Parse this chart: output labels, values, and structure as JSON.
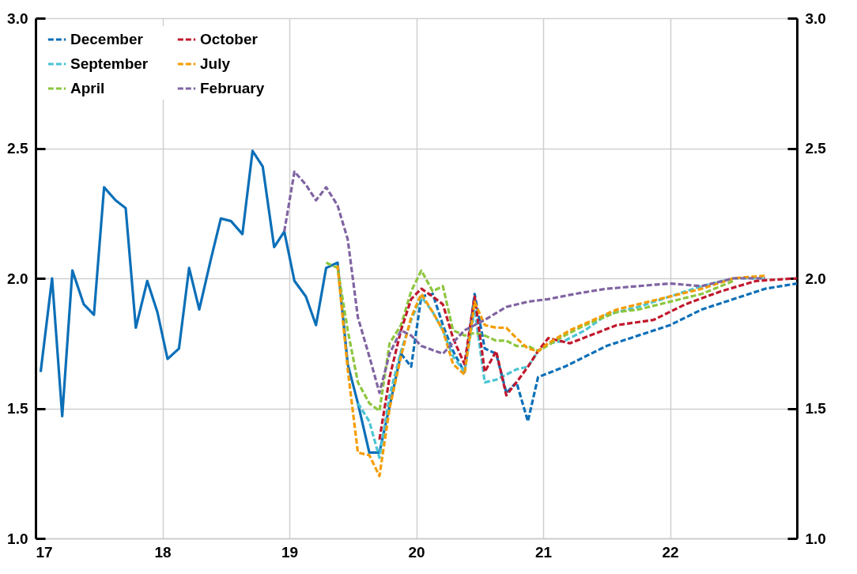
{
  "chart_data": {
    "type": "line",
    "xlim": [
      17,
      23
    ],
    "xticks": [
      17,
      18,
      19,
      20,
      21,
      22
    ],
    "ylim": [
      1.0,
      3.0
    ],
    "yticks": [
      {
        "value": 1.0,
        "label": "1.0"
      },
      {
        "value": 1.5,
        "label": "1.5"
      },
      {
        "value": 2.0,
        "label": "2.0"
      },
      {
        "value": 2.5,
        "label": "2.5"
      },
      {
        "value": 3.0,
        "label": "3.0"
      }
    ],
    "y2lim": [
      1.0,
      3.0
    ],
    "y2ticks": [
      {
        "value": 1.0,
        "label": "1.0"
      },
      {
        "value": 1.5,
        "label": "1.5"
      },
      {
        "value": 2.0,
        "label": "2.0"
      },
      {
        "value": 2.5,
        "label": "2.5"
      },
      {
        "value": 3.0,
        "label": "3.0"
      }
    ],
    "grid": true,
    "legend": "top left",
    "marker": "none",
    "series": [
      {
        "color": "#0b6fb8",
        "line_style": "solid",
        "x": [
          17.04,
          17.13,
          17.21,
          17.29,
          17.38,
          17.46,
          17.54,
          17.63,
          17.71,
          17.79,
          17.88,
          17.96,
          18.04,
          18.13,
          18.21,
          18.29,
          18.38,
          18.46,
          18.54,
          18.63,
          18.71,
          18.79,
          18.88,
          18.96,
          19.04,
          19.13,
          19.21,
          19.29,
          19.38,
          19.46,
          19.54,
          19.63,
          19.71,
          19.88
        ],
        "values": [
          1.64,
          2.0,
          1.47,
          2.03,
          1.9,
          1.86,
          2.35,
          2.3,
          2.27,
          1.81,
          1.99,
          1.87,
          1.69,
          1.73,
          2.04,
          1.88,
          2.07,
          2.23,
          2.22,
          2.17,
          2.49,
          2.43,
          2.12,
          2.18,
          1.99,
          1.93,
          1.82,
          2.04,
          2.06,
          1.67,
          1.52,
          1.33,
          1.33,
          1.71
        ]
      },
      {
        "name": "December",
        "color": "#0b6fb8",
        "line_style": "dashed",
        "x": [
          19.88,
          19.96,
          20.04,
          20.13,
          20.21,
          20.29,
          20.38,
          20.46,
          20.54,
          20.63,
          20.71,
          20.79,
          20.88,
          20.96,
          21.17,
          21.5,
          21.75,
          22,
          22.25,
          22.5,
          22.75,
          23
        ],
        "values": [
          1.71,
          1.66,
          1.93,
          1.94,
          1.82,
          1.72,
          1.64,
          1.94,
          1.73,
          1.71,
          1.56,
          1.6,
          1.45,
          1.62,
          1.66,
          1.74,
          1.78,
          1.82,
          1.88,
          1.92,
          1.96,
          1.98
        ]
      },
      {
        "name": "September",
        "color": "#4bc4d4",
        "line_style": "dashed",
        "x": [
          19.54,
          19.63,
          19.71,
          19.79,
          19.88,
          19.96,
          20.04,
          20.13,
          20.21,
          20.29,
          20.38,
          20.46,
          20.54,
          20.63,
          20.71,
          20.79,
          20.88,
          20.96,
          21.04,
          21.17,
          21.33,
          21.5,
          21.75,
          22,
          22.25,
          22.5,
          22.75
        ],
        "values": [
          1.52,
          1.45,
          1.31,
          1.55,
          1.72,
          1.84,
          1.93,
          1.87,
          1.8,
          1.7,
          1.64,
          1.88,
          1.6,
          1.61,
          1.63,
          1.65,
          1.66,
          1.72,
          1.75,
          1.76,
          1.8,
          1.86,
          1.89,
          1.93,
          1.97,
          2.0,
          2.0
        ]
      },
      {
        "name": "April",
        "color": "#8dc63f",
        "line_style": "dashed",
        "x": [
          19.29,
          19.38,
          19.46,
          19.54,
          19.63,
          19.71,
          19.79,
          19.88,
          19.96,
          20.04,
          20.13,
          20.21,
          20.29,
          20.38,
          20.46,
          20.54,
          20.63,
          20.71,
          20.79,
          20.88,
          20.96,
          21.17,
          21.33,
          21.58,
          21.75,
          22,
          22.25,
          22.5
        ],
        "values": [
          2.06,
          2.04,
          1.8,
          1.6,
          1.52,
          1.49,
          1.75,
          1.82,
          1.95,
          2.03,
          1.95,
          1.97,
          1.8,
          1.78,
          1.79,
          1.78,
          1.76,
          1.76,
          1.74,
          1.74,
          1.72,
          1.78,
          1.82,
          1.87,
          1.88,
          1.91,
          1.94,
          1.99
        ]
      },
      {
        "name": "October",
        "color": "#c0182d",
        "line_style": "dashed",
        "x": [
          19.71,
          19.79,
          19.88,
          19.96,
          20.04,
          20.13,
          20.21,
          20.29,
          20.38,
          20.46,
          20.54,
          20.63,
          20.71,
          20.79,
          20.88,
          20.96,
          21.04,
          21.21,
          21.58,
          21.87,
          22.12,
          22.4,
          22.68,
          23
        ],
        "values": [
          1.38,
          1.62,
          1.8,
          1.92,
          1.96,
          1.93,
          1.9,
          1.77,
          1.67,
          1.93,
          1.64,
          1.72,
          1.55,
          1.6,
          1.66,
          1.72,
          1.77,
          1.75,
          1.82,
          1.84,
          1.9,
          1.95,
          1.99,
          2.0
        ]
      },
      {
        "name": "July",
        "color": "#f59c00",
        "line_style": "dashed",
        "x": [
          19.38,
          19.46,
          19.54,
          19.63,
          19.71,
          19.79,
          19.88,
          19.96,
          20.04,
          20.13,
          20.21,
          20.29,
          20.38,
          20.46,
          20.54,
          20.63,
          20.71,
          20.79,
          20.88,
          20.96,
          21.04,
          21.21,
          21.58,
          22,
          22.25,
          22.5,
          22.75
        ],
        "values": [
          2.05,
          1.65,
          1.33,
          1.32,
          1.24,
          1.5,
          1.7,
          1.85,
          1.94,
          1.87,
          1.8,
          1.67,
          1.63,
          1.91,
          1.82,
          1.81,
          1.81,
          1.77,
          1.73,
          1.72,
          1.75,
          1.8,
          1.88,
          1.93,
          1.96,
          2.0,
          2.01
        ]
      },
      {
        "name": "February",
        "color": "#8064a2",
        "line_style": "dashed",
        "x": [
          18.96,
          19.04,
          19.13,
          19.21,
          19.29,
          19.38,
          19.46,
          19.54,
          19.63,
          19.71,
          19.79,
          19.88,
          19.96,
          20.04,
          20.21,
          20.38,
          20.54,
          20.71,
          20.88,
          21.04,
          21.25,
          21.5,
          21.75,
          22,
          22.25,
          22.5,
          22.75
        ],
        "values": [
          2.18,
          2.41,
          2.36,
          2.3,
          2.35,
          2.28,
          2.15,
          1.85,
          1.7,
          1.56,
          1.71,
          1.8,
          1.78,
          1.74,
          1.71,
          1.8,
          1.84,
          1.89,
          1.91,
          1.92,
          1.94,
          1.96,
          1.97,
          1.98,
          1.97,
          2.0,
          2.0
        ]
      }
    ]
  }
}
